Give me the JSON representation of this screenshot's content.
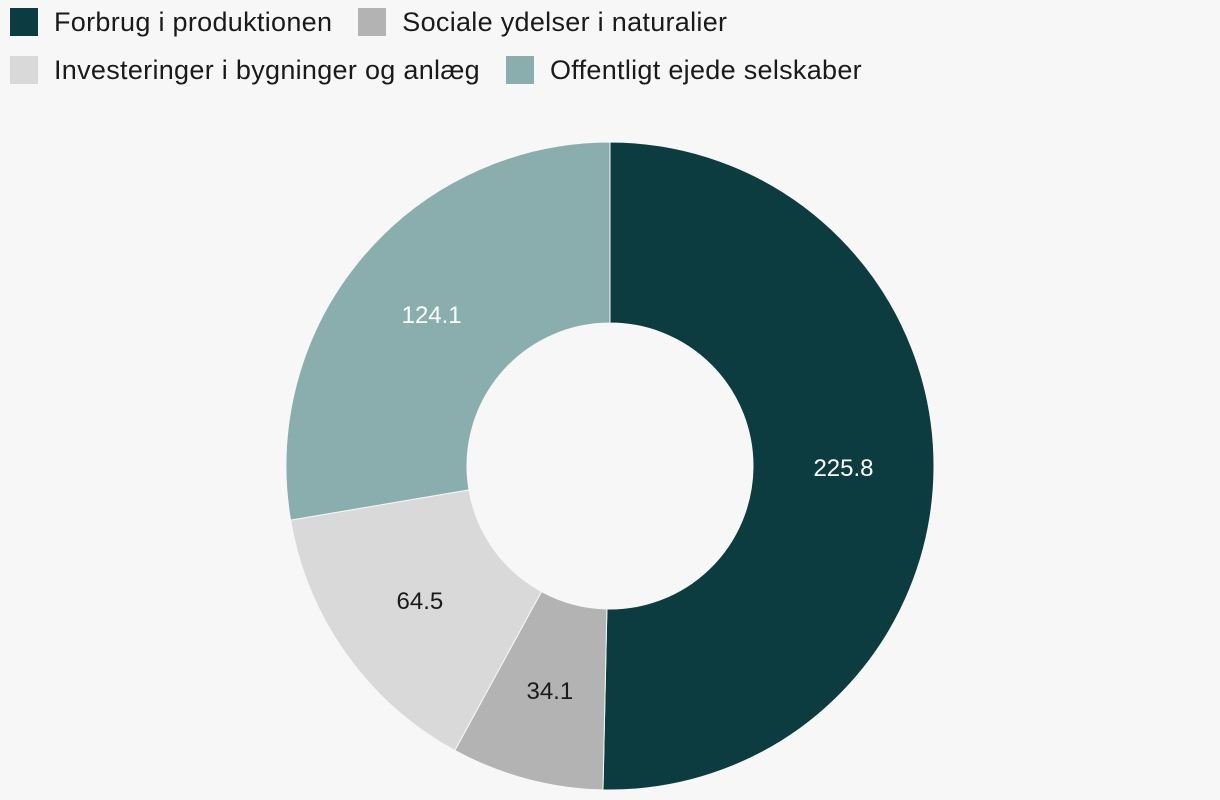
{
  "chart_data": {
    "type": "pie",
    "variant": "donut",
    "title": "",
    "legend_position": "top-left",
    "categories": [
      "Forbrug i produktionen",
      "Sociale ydelser i naturalier",
      "Investeringer i bygninger og anlæg",
      "Offentligt ejede selskaber"
    ],
    "values": [
      225.8,
      34.1,
      64.5,
      124.1
    ],
    "value_labels": [
      "225.8",
      "34.1",
      "64.5",
      "124.1"
    ],
    "colors": [
      "#0c3c40",
      "#b3b3b3",
      "#d9d9d9",
      "#8aadad"
    ],
    "label_colors": [
      "#ffffff",
      "#1a1a1a",
      "#1a1a1a",
      "#ffffff"
    ]
  }
}
